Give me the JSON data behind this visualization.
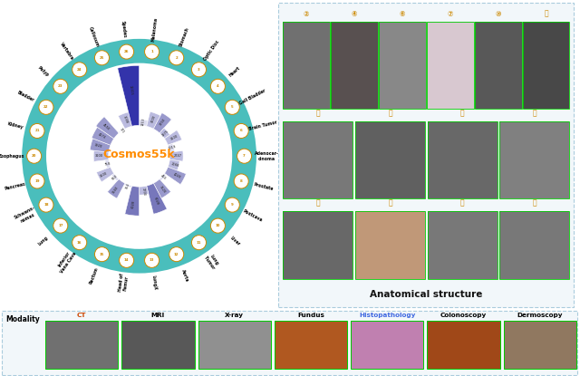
{
  "title": "Cosmos55k",
  "title_color": "#FF8C00",
  "teal_ring_color": "#4ABEBC",
  "categories": [
    "Melanoma",
    "Stomach",
    "Optic Disc",
    "Heart",
    "Gall Bladder",
    "Brain Tumor",
    "Adenocar-\ncinoma",
    "Prostate",
    "Postcava",
    "Liver",
    "Lung\nTumor",
    "Aorta",
    "LungX",
    "Head of\nFemur",
    "Rectum",
    "Inferior\nVena Cava",
    "Lung",
    "Schwann-\nnomas",
    "Pancreas",
    "Esophagus",
    "Kidney",
    "Bladder",
    "Polyp",
    "Vertebra",
    "Callosum",
    "Spades"
  ],
  "numbers": [
    1213,
    3100,
    3750,
    1375,
    3100,
    1019,
    2747,
    2066,
    4020,
    424,
    3520,
    6028,
    1700,
    6028,
    354,
    3560,
    550,
    3100,
    758,
    3100,
    3920,
    4174,
    4550,
    171,
    3008,
    12415
  ],
  "indices": [
    1,
    2,
    3,
    4,
    5,
    6,
    7,
    8,
    9,
    10,
    11,
    12,
    13,
    14,
    15,
    16,
    17,
    18,
    19,
    20,
    21,
    22,
    23,
    24,
    25,
    26
  ],
  "bg_color": "#FFFFFF",
  "fig_width": 6.4,
  "fig_height": 4.15,
  "right_panel_title": "Anatomical structure",
  "row1_labels": [
    "②",
    "④",
    "⑥",
    "⑦",
    "⑩",
    "⑪"
  ],
  "row2_labels": [
    "⑰",
    "⑰",
    "⑱",
    "⑲"
  ],
  "row3_labels": [
    "㉑",
    "㉕",
    "㉖",
    "㉗"
  ],
  "bottom_labels": [
    "CT",
    "MRI",
    "X-ray",
    "Fundus",
    "Histopathology",
    "Colonoscopy",
    "Dermoscopy"
  ],
  "modality_label": "Modality",
  "histopath_color": "#4169E1",
  "bottom_mod_colors": [
    "#707070",
    "#585858",
    "#909090",
    "#B05820",
    "#C080B0",
    "#A04818",
    "#907860"
  ]
}
